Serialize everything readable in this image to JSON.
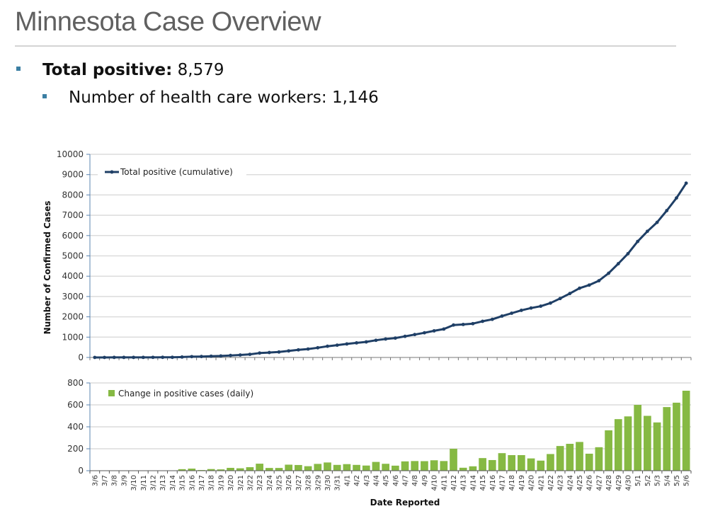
{
  "slide": {
    "title": "Minnesota Case Overview",
    "bullet1_label": "Total positive:",
    "bullet1_value": "8,579",
    "bullet2_text": "Number of health care workers: 1,146"
  },
  "colors": {
    "line": "#1f3f66",
    "bar": "#86b943",
    "grid": "#dcdcdc",
    "axis": "#5b84b1",
    "bullet": "#3b7fa3"
  },
  "chart_data": [
    {
      "type": "line",
      "title": "",
      "legend": "Total positive (cumulative)",
      "legend_position": "top-left",
      "ylabel": "Number of Confirmed Cases",
      "xlabel": "",
      "ylim": [
        0,
        10000
      ],
      "yticks": [
        "0",
        "1000",
        "2000",
        "3000",
        "4000",
        "5000",
        "6000",
        "7000",
        "8000",
        "9000",
        "10000"
      ],
      "grid": true,
      "x": [
        "3/6",
        "3/7",
        "3/8",
        "3/9",
        "3/10",
        "3/11",
        "3/12",
        "3/13",
        "3/14",
        "3/15",
        "3/16",
        "3/17",
        "3/18",
        "3/19",
        "3/20",
        "3/21",
        "3/22",
        "3/23",
        "3/24",
        "3/25",
        "3/26",
        "3/27",
        "3/28",
        "3/29",
        "3/30",
        "3/31",
        "4/1",
        "4/2",
        "4/3",
        "4/4",
        "4/5",
        "4/6",
        "4/7",
        "4/8",
        "4/9",
        "4/10",
        "4/11",
        "4/12",
        "4/13",
        "4/14",
        "4/15",
        "4/16",
        "4/17",
        "4/18",
        "4/19",
        "4/20",
        "4/21",
        "4/22",
        "4/23",
        "4/24",
        "4/25",
        "4/26",
        "4/27",
        "4/28",
        "4/29",
        "4/30",
        "5/1",
        "5/2",
        "5/3",
        "5/4",
        "5/5",
        "5/6"
      ],
      "values": [
        1,
        1,
        2,
        2,
        3,
        4,
        5,
        6,
        7,
        21,
        40,
        46,
        61,
        73,
        99,
        121,
        153,
        217,
        242,
        267,
        322,
        374,
        415,
        477,
        552,
        605,
        665,
        718,
        765,
        845,
        908,
        954,
        1039,
        1127,
        1214,
        1309,
        1397,
        1597,
        1624,
        1664,
        1779,
        1876,
        2036,
        2178,
        2320,
        2432,
        2524,
        2676,
        2901,
        3146,
        3408,
        3563,
        3777,
        4145,
        4615,
        5110,
        5710,
        6210,
        6650,
        7230,
        7850,
        8579
      ]
    },
    {
      "type": "bar",
      "title": "",
      "legend": "Change in positive cases (daily)",
      "legend_position": "top-left",
      "xlabel": "Date Reported",
      "ylabel": "",
      "ylim": [
        0,
        800
      ],
      "yticks": [
        "0",
        "200",
        "400",
        "600",
        "800"
      ],
      "grid": true,
      "categories": [
        "3/6",
        "3/7",
        "3/8",
        "3/9",
        "3/10",
        "3/11",
        "3/12",
        "3/13",
        "3/14",
        "3/15",
        "3/16",
        "3/17",
        "3/18",
        "3/19",
        "3/20",
        "3/21",
        "3/22",
        "3/23",
        "3/24",
        "3/25",
        "3/26",
        "3/27",
        "3/28",
        "3/29",
        "3/30",
        "3/31",
        "4/1",
        "4/2",
        "4/3",
        "4/4",
        "4/5",
        "4/6",
        "4/7",
        "4/8",
        "4/9",
        "4/10",
        "4/11",
        "4/12",
        "4/13",
        "4/14",
        "4/15",
        "4/16",
        "4/17",
        "4/18",
        "4/19",
        "4/20",
        "4/21",
        "4/22",
        "4/23",
        "4/24",
        "4/25",
        "4/26",
        "4/27",
        "4/28",
        "4/29",
        "4/30",
        "5/1",
        "5/2",
        "5/3",
        "5/4",
        "5/5",
        "5/6"
      ],
      "values": [
        1,
        0,
        1,
        0,
        1,
        1,
        1,
        1,
        1,
        14,
        19,
        6,
        15,
        12,
        26,
        22,
        32,
        64,
        25,
        25,
        55,
        52,
        41,
        62,
        75,
        53,
        60,
        53,
        47,
        80,
        63,
        46,
        85,
        88,
        87,
        95,
        88,
        200,
        27,
        40,
        115,
        97,
        160,
        142,
        142,
        112,
        92,
        152,
        225,
        245,
        262,
        155,
        214,
        368,
        470,
        495,
        600,
        500,
        440,
        580,
        620,
        729
      ]
    }
  ]
}
